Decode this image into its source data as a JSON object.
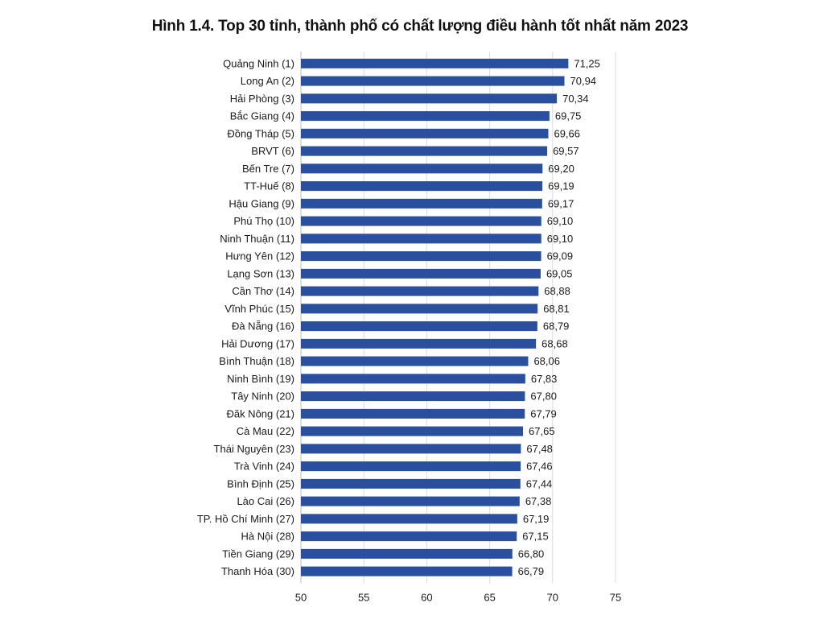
{
  "chart_data": {
    "type": "bar",
    "orientation": "horizontal",
    "title": "Hình 1.4. Top 30 tỉnh, thành phố có chất lượng điều hành tốt nhất năm 2023",
    "xlabel": "",
    "ylabel": "",
    "categories": [
      "Quảng Ninh (1)",
      "Long An (2)",
      "Hải Phòng (3)",
      "Bắc Giang (4)",
      "Đồng Tháp (5)",
      "BRVT (6)",
      "Bến Tre (7)",
      "TT-Huế (8)",
      "Hậu Giang (9)",
      "Phú Thọ (10)",
      "Ninh Thuận (11)",
      "Hưng Yên (12)",
      "Lạng Sơn (13)",
      "Cần Thơ (14)",
      "Vĩnh Phúc (15)",
      "Đà Nẵng (16)",
      "Hải Dương (17)",
      "Bình Thuận (18)",
      "Ninh Bình (19)",
      "Tây Ninh (20)",
      "Đăk Nông (21)",
      "Cà Mau (22)",
      "Thái Nguyên (23)",
      "Trà Vinh (24)",
      "Bình Định (25)",
      "Lào Cai (26)",
      "TP. Hồ Chí Minh (27)",
      "Hà Nội (28)",
      "Tiền Giang (29)",
      "Thanh Hóa (30)"
    ],
    "values": [
      71.25,
      70.94,
      70.34,
      69.75,
      69.66,
      69.57,
      69.2,
      69.19,
      69.17,
      69.1,
      69.1,
      69.09,
      69.05,
      68.88,
      68.81,
      68.79,
      68.68,
      68.06,
      67.83,
      67.8,
      67.79,
      67.65,
      67.48,
      67.46,
      67.44,
      67.38,
      67.19,
      67.15,
      66.8,
      66.79
    ],
    "value_labels": [
      "71,25",
      "70,94",
      "70,34",
      "69,75",
      "69,66",
      "69,57",
      "69,20",
      "69,19",
      "69,17",
      "69,10",
      "69,10",
      "69,09",
      "69,05",
      "68,88",
      "68,81",
      "68,79",
      "68,68",
      "68,06",
      "67,83",
      "67,80",
      "67,79",
      "67,65",
      "67,48",
      "67,46",
      "67,44",
      "67,38",
      "67,19",
      "67,15",
      "66,80",
      "66,79"
    ],
    "xlim": [
      50,
      75
    ],
    "xticks": [
      50,
      55,
      60,
      65,
      70,
      75
    ],
    "xtick_labels": [
      "50",
      "55",
      "60",
      "65",
      "70",
      "75"
    ],
    "grid": true,
    "legend": "none",
    "bar_color": "#2a4f9e"
  }
}
